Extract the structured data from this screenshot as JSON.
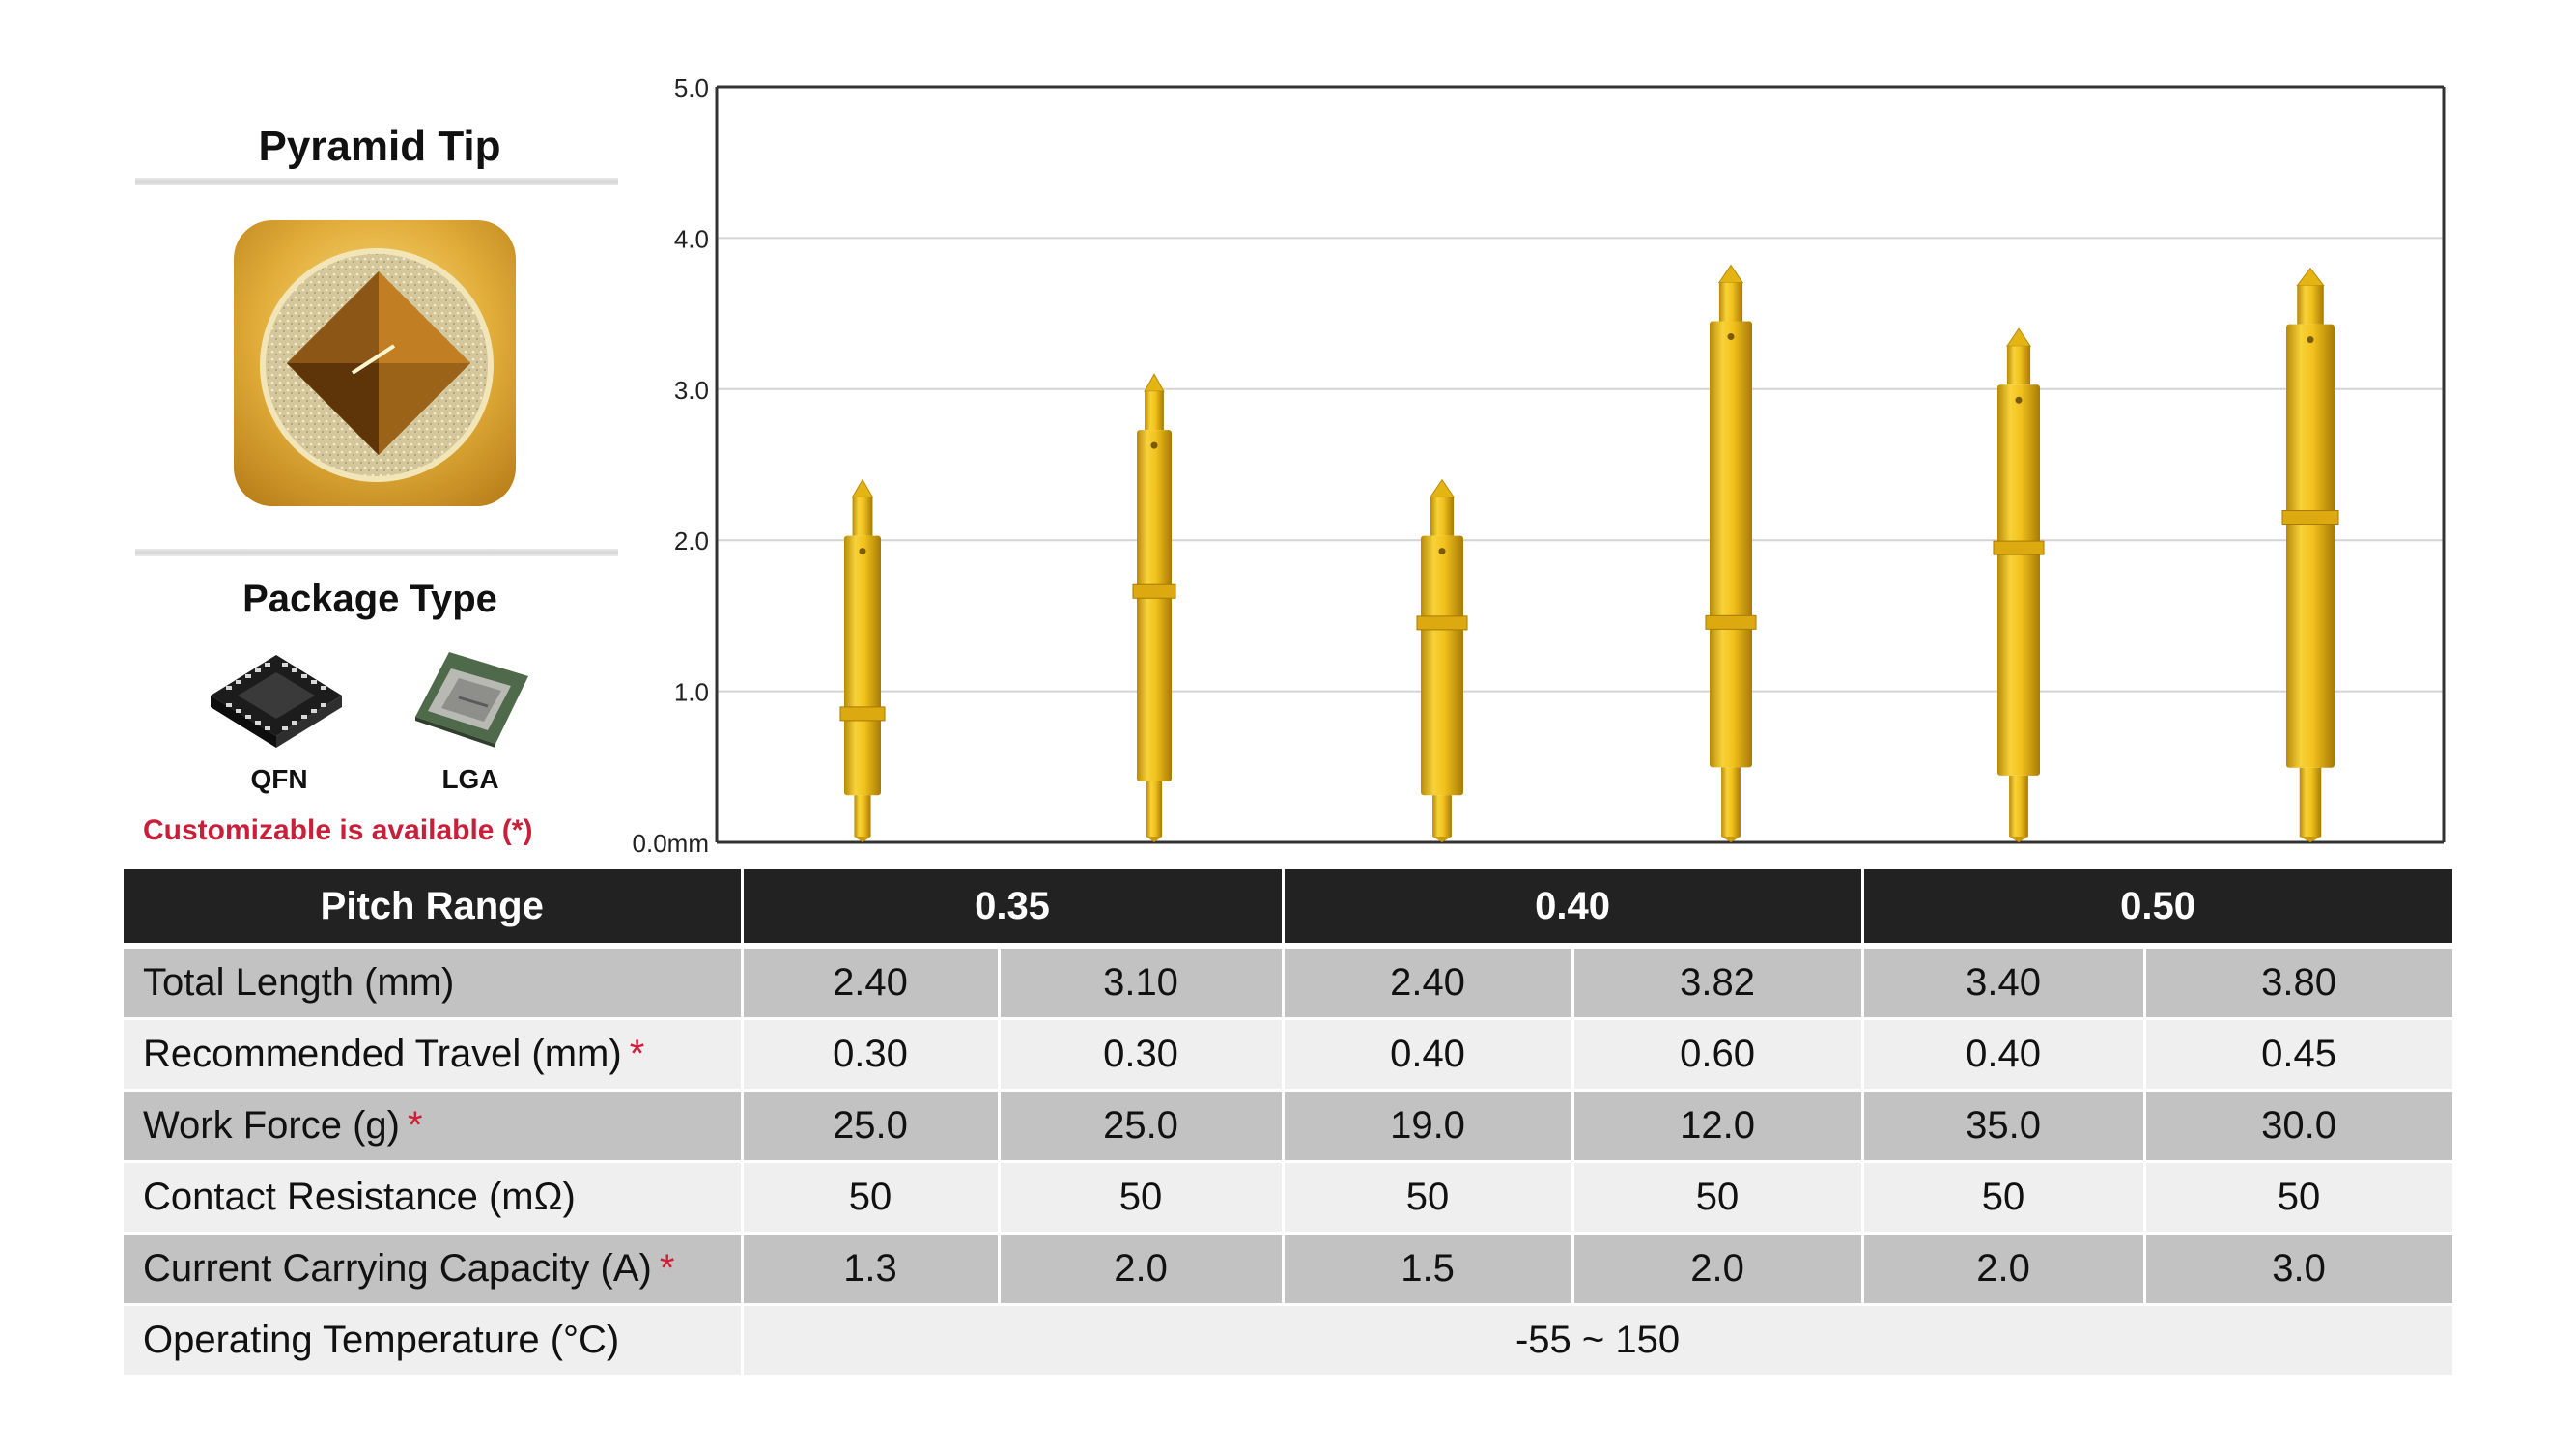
{
  "left_panel": {
    "tip_title": "Pyramid Tip",
    "package_title": "Package Type",
    "packages": [
      {
        "label": "QFN",
        "icon": "qfn-chip-icon"
      },
      {
        "label": "LGA",
        "icon": "lga-chip-icon"
      }
    ],
    "custom_note": "Customizable is available (*)"
  },
  "chart_data": {
    "type": "bar",
    "y_ticks": [
      "5.0",
      "4.0",
      "3.0",
      "2.0",
      "1.0",
      "0.0mm"
    ],
    "ylim": [
      0,
      5
    ],
    "grid": true,
    "series_color": "#f0c419",
    "values": [
      2.4,
      3.1,
      2.4,
      3.82,
      3.4,
      3.8
    ],
    "xlabel": "",
    "ylabel": ""
  },
  "table": {
    "header": {
      "label": "Pitch Range",
      "groups": [
        "0.35",
        "0.40",
        "0.50"
      ]
    },
    "rows": [
      {
        "label": "Total Length (mm)",
        "star": "",
        "values": [
          "2.40",
          "3.10",
          "2.40",
          "3.82",
          "3.40",
          "3.80"
        ]
      },
      {
        "label": "Recommended Travel (mm)",
        "star": "*",
        "values": [
          "0.30",
          "0.30",
          "0.40",
          "0.60",
          "0.40",
          "0.45"
        ]
      },
      {
        "label": "Work Force (g)",
        "star": "*",
        "values": [
          "25.0",
          "25.0",
          "19.0",
          "12.0",
          "35.0",
          "30.0"
        ]
      },
      {
        "label": "Contact Resistance (mΩ)",
        "star": "",
        "values": [
          "50",
          "50",
          "50",
          "50",
          "50",
          "50"
        ]
      },
      {
        "label": "Current Carrying Capacity (A)",
        "star": "*",
        "values": [
          "1.3",
          "2.0",
          "1.5",
          "2.0",
          "2.0",
          "3.0"
        ]
      }
    ],
    "temperature": {
      "label": "Operating Temperature (°C)",
      "value": "-55 ~ 150"
    }
  },
  "colors": {
    "header_bg": "#222222",
    "row_dark": "#c2c2c2",
    "row_light": "#efefef",
    "accent_red": "#c8203a",
    "pin_gold": "#f0c419"
  }
}
